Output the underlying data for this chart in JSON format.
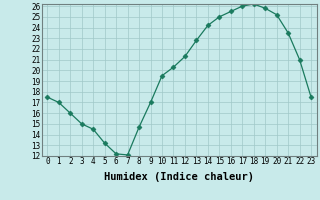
{
  "title": "",
  "xlabel": "Humidex (Indice chaleur)",
  "ylabel": "",
  "x": [
    0,
    1,
    2,
    3,
    4,
    5,
    6,
    7,
    8,
    9,
    10,
    11,
    12,
    13,
    14,
    15,
    16,
    17,
    18,
    19,
    20,
    21,
    22,
    23
  ],
  "y": [
    17.5,
    17.0,
    16.0,
    15.0,
    14.5,
    13.2,
    12.2,
    12.1,
    14.7,
    17.0,
    19.5,
    20.3,
    21.3,
    22.8,
    24.2,
    25.0,
    25.5,
    26.0,
    26.2,
    25.8,
    25.2,
    23.5,
    21.0,
    17.5
  ],
  "line_color": "#1a7a5e",
  "marker": "D",
  "marker_size": 2.5,
  "bg_color": "#c8eaea",
  "grid_color": "#a0c8c8",
  "axis_bg": "#c8eaea",
  "ylim": [
    12,
    26
  ],
  "xlim": [
    -0.5,
    23.5
  ],
  "yticks": [
    12,
    13,
    14,
    15,
    16,
    17,
    18,
    19,
    20,
    21,
    22,
    23,
    24,
    25,
    26
  ],
  "xticks": [
    0,
    1,
    2,
    3,
    4,
    5,
    6,
    7,
    8,
    9,
    10,
    11,
    12,
    13,
    14,
    15,
    16,
    17,
    18,
    19,
    20,
    21,
    22,
    23
  ],
  "tick_fontsize": 5.5,
  "label_fontsize": 7.5
}
